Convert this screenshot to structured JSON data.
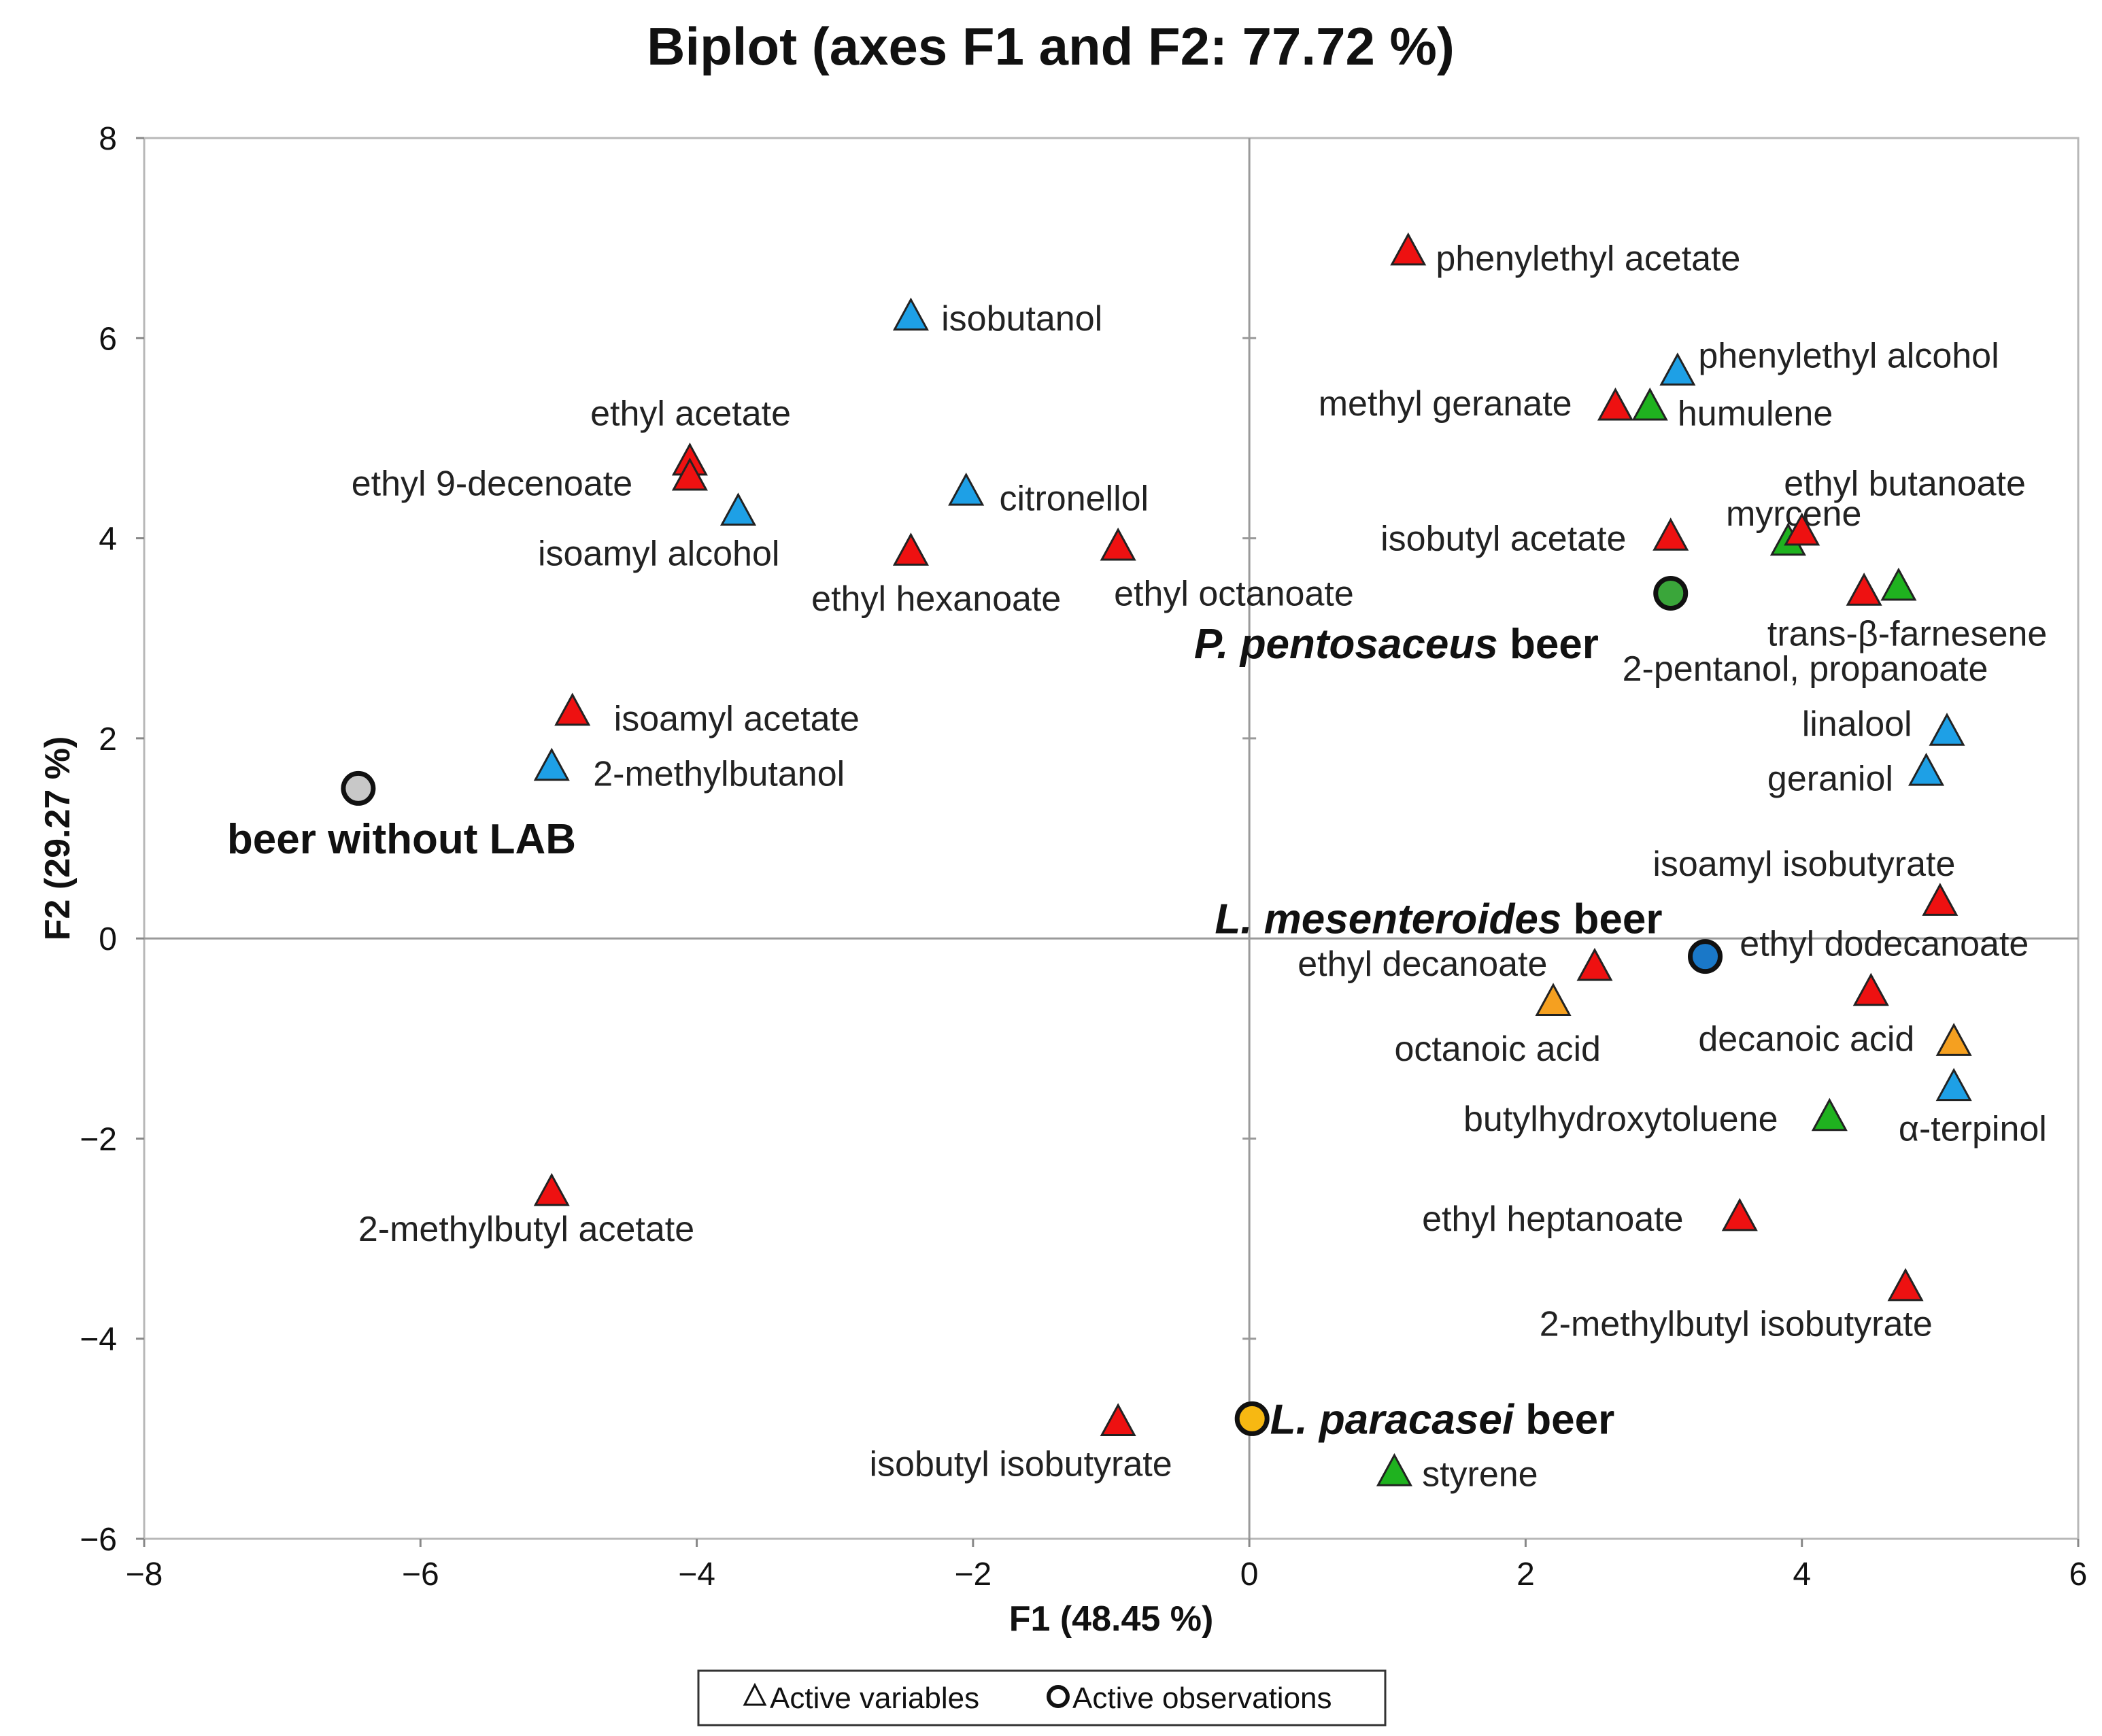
{
  "chart_data": {
    "type": "scatter",
    "title": "Biplot (axes F1 and F2: 77.72 %)",
    "xlabel": "F1 (48.45 %)",
    "ylabel": "F2 (29.27 %)",
    "xlim": [
      -8,
      6
    ],
    "ylim": [
      -6,
      8
    ],
    "xticks": [
      -8,
      -6,
      -4,
      -2,
      0,
      2,
      4,
      6
    ],
    "yticks": [
      -6,
      -4,
      -2,
      0,
      2,
      4,
      6,
      8
    ],
    "xtick_labels": [
      "−8",
      "−6",
      "−4",
      "−2",
      "0",
      "2",
      "4",
      "6"
    ],
    "ytick_labels": [
      "−6",
      "−4",
      "−2",
      "0",
      "2",
      "4",
      "6",
      "8"
    ],
    "grid": false,
    "colors": {
      "red": "#ee1111",
      "blue": "#1ea0e6",
      "green": "#1fb21f",
      "orange": "#f5a020",
      "gray_obs": "#c8c8c8",
      "green_obs": "#3aa63a",
      "blue_obs": "#1a78c8",
      "yellow_obs": "#f7b812"
    },
    "legend": {
      "placement": "bottom-center",
      "items": [
        {
          "marker": "triangle-open",
          "label": "Active variables"
        },
        {
          "marker": "circle-open",
          "label": "Active observations"
        }
      ]
    },
    "variables": [
      {
        "label": "phenylethyl  acetate",
        "x": 1.15,
        "y": 6.85,
        "color": "red",
        "dx": 0.2,
        "dy": -0.05
      },
      {
        "label": "isobutanol",
        "x": -2.45,
        "y": 6.2,
        "color": "blue",
        "dx": 0.22,
        "dy": 0.0
      },
      {
        "label": "phenylethyl  alcohol",
        "x": 3.1,
        "y": 5.65,
        "color": "blue",
        "dx": 0.15,
        "dy": 0.18
      },
      {
        "label": "methyl  geranate",
        "x": 2.65,
        "y": 5.3,
        "color": "red",
        "dx": -2.15,
        "dy": 0.05
      },
      {
        "label": "humulene",
        "x": 2.9,
        "y": 5.3,
        "color": "green",
        "dx": 0.2,
        "dy": -0.05
      },
      {
        "label": "ethyl  acetate",
        "x": -4.05,
        "y": 4.75,
        "color": "red",
        "dx": -0.72,
        "dy": 0.5
      },
      {
        "label": "ethyl 9-decenoate",
        "x": -4.05,
        "y": 4.6,
        "color": "red",
        "dx": -2.45,
        "dy": -0.05
      },
      {
        "label": "isoamyl  alcohol",
        "x": -3.7,
        "y": 4.25,
        "color": "blue",
        "dx": -1.45,
        "dy": -0.4
      },
      {
        "label": "citronellol",
        "x": -2.05,
        "y": 4.45,
        "color": "blue",
        "dx": 0.24,
        "dy": -0.05
      },
      {
        "label": "ethyl  hexanoate",
        "x": -2.45,
        "y": 3.85,
        "color": "red",
        "dx": -0.72,
        "dy": -0.45
      },
      {
        "label": "ethyl  octanoate",
        "x": -0.95,
        "y": 3.9,
        "color": "red",
        "dx": -0.03,
        "dy": -0.45
      },
      {
        "label": "isobutyl  acetate",
        "x": 3.05,
        "y": 4.0,
        "color": "red",
        "dx": -2.1,
        "dy": 0.0
      },
      {
        "label": "myrcene",
        "x": 3.9,
        "y": 3.95,
        "color": "green",
        "dx": -0.45,
        "dy": 0.3
      },
      {
        "label": "ethyl  butanoate",
        "x": 4.0,
        "y": 4.05,
        "color": "red",
        "dx": -0.13,
        "dy": 0.5
      },
      {
        "label": "trans-β-farnesene",
        "x": 4.7,
        "y": 3.5,
        "color": "green",
        "dx": -0.95,
        "dy": -0.45
      },
      {
        "label": "2-pentanol, propanoate",
        "x": 4.45,
        "y": 3.45,
        "color": "red",
        "dx": -1.75,
        "dy": -0.75
      },
      {
        "label": "isoamyl  acetate",
        "x": -4.9,
        "y": 2.25,
        "color": "red",
        "dx": 0.3,
        "dy": -0.05
      },
      {
        "label": "2-methylbutanol",
        "x": -5.05,
        "y": 1.7,
        "color": "blue",
        "dx": 0.3,
        "dy": -0.05
      },
      {
        "label": "linalool",
        "x": 5.05,
        "y": 2.05,
        "color": "blue",
        "dx": -1.05,
        "dy": 0.1
      },
      {
        "label": "geraniol",
        "x": 4.9,
        "y": 1.65,
        "color": "blue",
        "dx": -1.15,
        "dy": -0.05
      },
      {
        "label": "isoamyl  isobutyrate",
        "x": 5.0,
        "y": 0.35,
        "color": "red",
        "dx": -2.08,
        "dy": 0.4
      },
      {
        "label": "ethyl  decanoate",
        "x": 2.5,
        "y": -0.3,
        "color": "red",
        "dx": -2.15,
        "dy": 0.05
      },
      {
        "label": "octanoic  acid",
        "x": 2.2,
        "y": -0.65,
        "color": "orange",
        "dx": -1.15,
        "dy": -0.45
      },
      {
        "label": "ethyl  dodecanoate",
        "x": 4.5,
        "y": -0.55,
        "color": "red",
        "dx": -0.95,
        "dy": 0.5
      },
      {
        "label": "decanoic  acid",
        "x": 5.1,
        "y": -1.05,
        "color": "orange",
        "dx": -1.85,
        "dy": 0.05
      },
      {
        "label": "α-terpinol",
        "x": 5.1,
        "y": -1.5,
        "color": "blue",
        "dx": -0.4,
        "dy": -0.4
      },
      {
        "label": "butylhydroxytoluene",
        "x": 4.2,
        "y": -1.8,
        "color": "green",
        "dx": -2.65,
        "dy": 0.0
      },
      {
        "label": "2-methylbutyl  acetate",
        "x": -5.05,
        "y": -2.55,
        "color": "red",
        "dx": -1.4,
        "dy": -0.35
      },
      {
        "label": "ethyl  heptanoate",
        "x": 3.55,
        "y": -2.8,
        "color": "red",
        "dx": -2.3,
        "dy": 0.0
      },
      {
        "label": "2-methylbutyl  isobutyrate",
        "x": 4.75,
        "y": -3.5,
        "color": "red",
        "dx": -2.65,
        "dy": -0.35
      },
      {
        "label": "isobutyl  isobutyrate",
        "x": -0.95,
        "y": -4.85,
        "color": "red",
        "dx": -1.8,
        "dy": -0.4
      },
      {
        "label": "styrene",
        "x": 1.05,
        "y": -5.35,
        "color": "green",
        "dx": 0.2,
        "dy": 0.0
      }
    ],
    "observations": [
      {
        "label": "beer without LAB",
        "x": -6.45,
        "y": 1.5,
        "color": "gray_obs",
        "label_x": -7.4,
        "label_y": 1.0,
        "parts": [
          {
            "text": "beer without LAB",
            "italic": false
          }
        ]
      },
      {
        "label": "P. pentosaceus beer",
        "x": 3.05,
        "y": 3.45,
        "color": "green_obs",
        "label_x": -0.4,
        "label_y": 2.95,
        "parts": [
          {
            "text": "P. pentosaceus",
            "italic": true
          },
          {
            "text": " beer",
            "italic": false
          }
        ]
      },
      {
        "label": "L. mesenteroides beer",
        "x": 3.3,
        "y": -0.18,
        "color": "blue_obs",
        "label_x": -0.25,
        "label_y": 0.2,
        "parts": [
          {
            "text": "L. mesenteroides",
            "italic": true
          },
          {
            "text": " beer",
            "italic": false
          }
        ]
      },
      {
        "label": "L. paracasei beer",
        "x": 0.02,
        "y": -4.8,
        "color": "yellow_obs",
        "label_x": 0.15,
        "label_y": -4.8,
        "parts": [
          {
            "text": "L. paracasei",
            "italic": true
          },
          {
            "text": " beer",
            "italic": false
          }
        ]
      }
    ]
  }
}
